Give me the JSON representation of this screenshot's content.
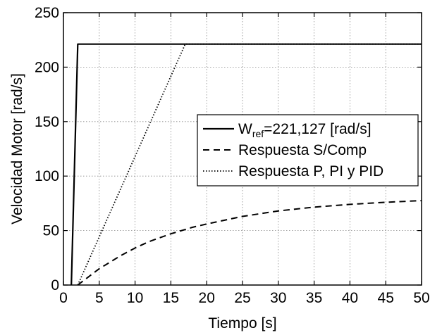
{
  "chart_data": {
    "type": "line",
    "xlabel": "Tiempo [s]",
    "ylabel": "Velocidad Motor [rad/s]",
    "xlim": [
      0,
      50
    ],
    "ylim": [
      0,
      250
    ],
    "xticks": [
      0,
      5,
      10,
      15,
      20,
      25,
      30,
      35,
      40,
      45,
      50
    ],
    "yticks": [
      0,
      50,
      100,
      150,
      200,
      250
    ],
    "grid": true,
    "legend_position": "center-right",
    "series": [
      {
        "name": "W_ref=221,127 [rad/s]",
        "legend": {
          "main": "W",
          "sub": "ref",
          "rest": "=221,127 [rad/s]"
        },
        "style": "solid",
        "color": "#000000",
        "x": [
          1.1,
          2.0,
          50
        ],
        "y": [
          0,
          221.127,
          221.127
        ]
      },
      {
        "name": "Respuesta S/Comp",
        "style": "dashed",
        "color": "#000000",
        "x": [
          2.0,
          2.5,
          3,
          4,
          5,
          6,
          8,
          10,
          12,
          15,
          18,
          20,
          25,
          30,
          35,
          40,
          45,
          50
        ],
        "y": [
          0,
          2.5,
          5,
          10,
          15,
          19,
          27,
          34,
          40,
          47,
          53,
          56,
          63,
          68,
          71.5,
          74,
          76,
          77.5
        ]
      },
      {
        "name": "Respuesta P, PI y PID",
        "style": "dotted",
        "color": "#000000",
        "x": [
          2.0,
          17.0,
          50
        ],
        "y": [
          0,
          221.127,
          221.127
        ]
      }
    ]
  }
}
